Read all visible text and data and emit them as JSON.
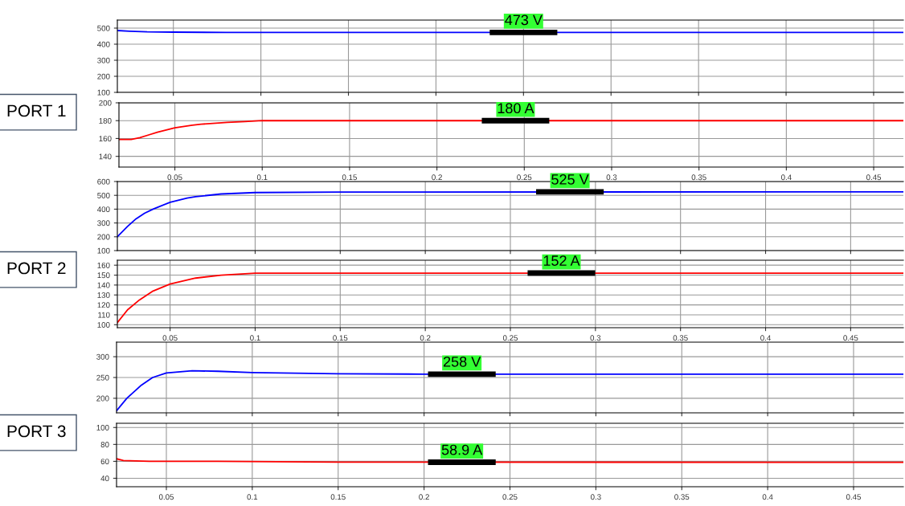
{
  "chart_data": [
    {
      "type": "line",
      "x": [
        0.018,
        0.025,
        0.035,
        0.05,
        0.08,
        0.15,
        0.467
      ],
      "series": [
        {
          "color": "#0000ff",
          "values": [
            485,
            481,
            477,
            475,
            473,
            473,
            473
          ]
        }
      ],
      "xlim": [
        0.018,
        0.467
      ],
      "xticks": [
        0.05,
        0.1,
        0.15,
        0.2,
        0.25,
        0.3,
        0.35,
        0.4,
        0.45
      ],
      "ylim": [
        100,
        550
      ],
      "yticks": [
        100,
        200,
        300,
        400,
        500
      ],
      "tick_labels": "y",
      "grid": true,
      "annotations": [
        {
          "text": "473 V",
          "x": 0.25,
          "y": 473
        }
      ]
    },
    {
      "type": "line",
      "x": [
        0.018,
        0.025,
        0.03,
        0.035,
        0.04,
        0.05,
        0.06,
        0.065,
        0.08,
        0.09,
        0.1,
        0.12,
        0.467
      ],
      "series": [
        {
          "color": "#ff0000",
          "values": [
            159,
            159,
            161,
            164,
            167,
            172,
            175,
            176,
            178,
            179,
            180,
            180,
            180
          ]
        }
      ],
      "xlim": [
        0.018,
        0.467
      ],
      "xticks": [
        0.05,
        0.1,
        0.15,
        0.2,
        0.25,
        0.3,
        0.35,
        0.4,
        0.45
      ],
      "ylim": [
        128,
        200
      ],
      "yticks": [
        140,
        160,
        180,
        200
      ],
      "grid": true,
      "annotations": [
        {
          "text": "180 A",
          "x": 0.245,
          "y": 180
        },
        "PORT 1"
      ]
    },
    {
      "type": "line",
      "x": [
        0.019,
        0.025,
        0.03,
        0.035,
        0.04,
        0.05,
        0.06,
        0.065,
        0.08,
        0.1,
        0.15,
        0.481
      ],
      "series": [
        {
          "color": "#0000ff",
          "values": [
            200,
            275,
            330,
            370,
            400,
            450,
            480,
            490,
            510,
            520,
            524,
            525
          ]
        }
      ],
      "xlim": [
        0.019,
        0.481
      ],
      "xticks": [
        0.05,
        0.1,
        0.15,
        0.2,
        0.25,
        0.3,
        0.35,
        0.4,
        0.45
      ],
      "ylim": [
        100,
        600
      ],
      "yticks": [
        100,
        200,
        300,
        400,
        500,
        600
      ],
      "tick_labels": "y",
      "grid": true,
      "annotations": [
        {
          "text": "525 V",
          "x": 0.285,
          "y": 525
        }
      ]
    },
    {
      "type": "line",
      "x": [
        0.019,
        0.025,
        0.032,
        0.04,
        0.05,
        0.065,
        0.08,
        0.1,
        0.15,
        0.481
      ],
      "series": [
        {
          "color": "#ff0000",
          "values": [
            102,
            115,
            125,
            134,
            141,
            147,
            150,
            152,
            152,
            152
          ]
        }
      ],
      "xlim": [
        0.019,
        0.481
      ],
      "xticks": [
        0.05,
        0.1,
        0.15,
        0.2,
        0.25,
        0.3,
        0.35,
        0.4,
        0.45
      ],
      "ylim": [
        97,
        165
      ],
      "yticks": [
        100,
        110,
        120,
        130,
        140,
        150,
        160
      ],
      "grid": true,
      "annotations": [
        {
          "text": "152 A",
          "x": 0.28,
          "y": 152
        },
        "PORT 2"
      ]
    },
    {
      "type": "line",
      "x": [
        0.021,
        0.027,
        0.035,
        0.042,
        0.05,
        0.065,
        0.08,
        0.1,
        0.15,
        0.2,
        0.479
      ],
      "series": [
        {
          "color": "#0000ff",
          "values": [
            170,
            200,
            230,
            250,
            261,
            266,
            265,
            262,
            259,
            258,
            258
          ]
        }
      ],
      "xlim": [
        0.021,
        0.479
      ],
      "xticks": [
        0.05,
        0.1,
        0.15,
        0.2,
        0.25,
        0.3,
        0.35,
        0.4,
        0.45
      ],
      "ylim": [
        165,
        335
      ],
      "yticks": [
        200,
        250,
        300
      ],
      "tick_labels": "y",
      "grid": true,
      "annotations": [
        {
          "text": "258 V",
          "x": 0.222,
          "y": 258
        }
      ]
    },
    {
      "type": "line",
      "x": [
        0.021,
        0.025,
        0.04,
        0.08,
        0.15,
        0.479
      ],
      "series": [
        {
          "color": "#ff0000",
          "values": [
            63,
            61,
            60,
            60,
            59,
            58.9
          ]
        }
      ],
      "xlim": [
        0.021,
        0.479
      ],
      "xticks": [
        0.05,
        0.1,
        0.15,
        0.2,
        0.25,
        0.3,
        0.35,
        0.4,
        0.45
      ],
      "ylim": [
        30,
        105
      ],
      "yticks": [
        40,
        60,
        80,
        100
      ],
      "grid": true,
      "annotations": [
        {
          "text": "58.9 A",
          "x": 0.222,
          "y": 58.9
        },
        "PORT 3"
      ]
    }
  ]
}
